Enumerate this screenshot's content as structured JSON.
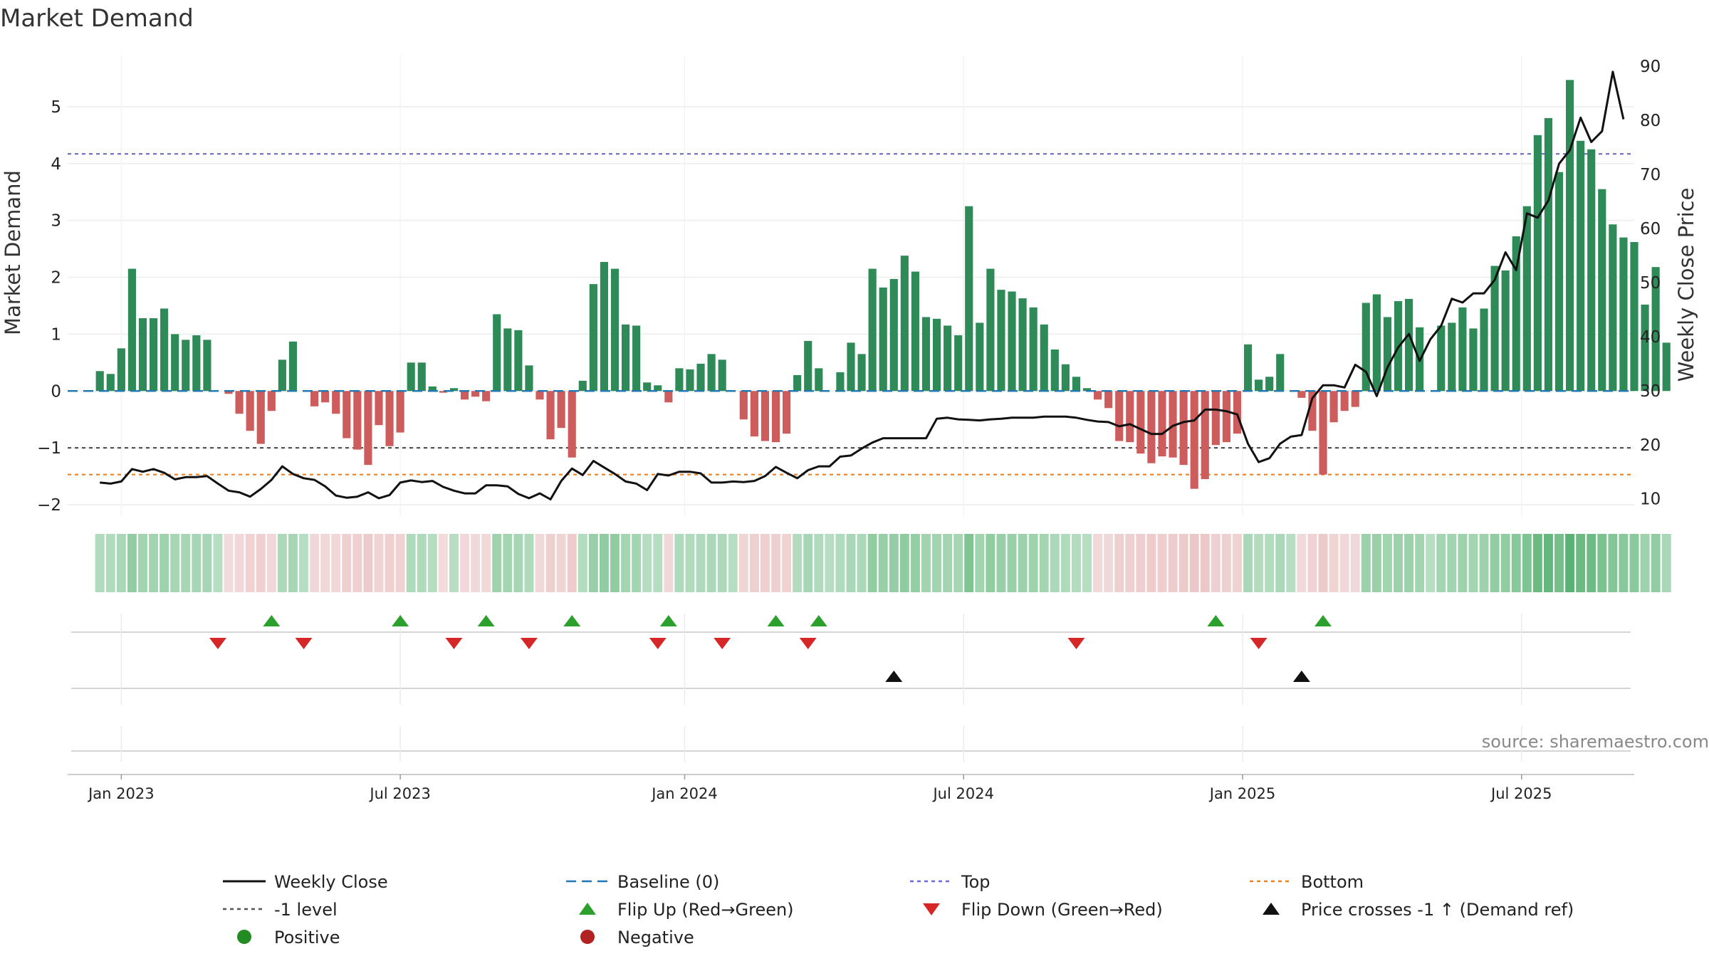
{
  "chart_data": {
    "type": "bar",
    "title": "Market Demand",
    "ylabel": "Market Demand",
    "y2label": "Weekly Close Price",
    "ylim": [
      -2.2,
      5.9
    ],
    "y2lim": [
      6.8,
      92
    ],
    "yticks": [
      -2,
      -1,
      0,
      1,
      2,
      3,
      4,
      5
    ],
    "y2ticks": [
      10,
      20,
      30,
      40,
      50,
      60,
      70,
      80,
      90
    ],
    "x_range": [
      -3,
      143
    ],
    "x_ticks": [
      {
        "label": "Jan 2023",
        "week": 2
      },
      {
        "label": "Jul 2023",
        "week": 28
      },
      {
        "label": "Jan 2024",
        "week": 54.5
      },
      {
        "label": "Jul 2024",
        "week": 80.5
      },
      {
        "label": "Jan 2025",
        "week": 106.5
      },
      {
        "label": "Jul 2025",
        "week": 132.5
      }
    ],
    "series": [
      {
        "name": "Market Demand",
        "values": [
          0.35,
          0.3,
          0.75,
          2.15,
          1.28,
          1.28,
          1.45,
          1.0,
          0.9,
          0.98,
          0.9,
          0,
          -0.05,
          -0.4,
          -0.7,
          -0.93,
          -0.35,
          0.55,
          0.87,
          0,
          -0.27,
          -0.2,
          -0.4,
          -0.83,
          -1.03,
          -1.3,
          -0.6,
          -0.97,
          -0.73,
          0.5,
          0.5,
          0.08,
          -0.03,
          0.05,
          -0.15,
          -0.1,
          -0.18,
          1.35,
          1.1,
          1.07,
          0.45,
          -0.15,
          -0.85,
          -0.65,
          -1.17,
          0.18,
          1.88,
          2.27,
          2.15,
          1.17,
          1.15,
          0.15,
          0.1,
          -0.2,
          0.4,
          0.38,
          0.48,
          0.65,
          0.55,
          0,
          -0.5,
          -0.8,
          -0.88,
          -0.9,
          -0.75,
          0.28,
          0.88,
          0.4,
          0,
          0.33,
          0.85,
          0.65,
          2.15,
          1.82,
          1.97,
          2.38,
          2.1,
          1.3,
          1.27,
          1.15,
          0.98,
          3.25,
          1.2,
          2.15,
          1.78,
          1.75,
          1.63,
          1.47,
          1.17,
          0.73,
          0.47,
          0.25,
          0.05,
          -0.15,
          -0.3,
          -0.88,
          -0.9,
          -1.1,
          -1.27,
          -1.15,
          -1.17,
          -1.3,
          -1.72,
          -1.55,
          -0.95,
          -0.9,
          -0.75,
          0.82,
          0.2,
          0.25,
          0.65,
          0,
          -0.12,
          -0.7,
          -1.47,
          -0.55,
          -0.35,
          -0.28,
          1.55,
          1.7,
          1.3,
          1.58,
          1.62,
          1.12,
          0,
          1.15,
          1.2,
          1.47,
          1.1,
          1.45,
          2.2,
          2.12,
          2.72,
          3.25,
          4.5,
          4.8,
          3.85,
          5.47,
          4.4,
          4.25,
          3.55,
          2.93,
          2.7,
          2.62,
          1.52,
          2.18,
          0.85
        ]
      },
      {
        "name": "Weekly Close",
        "values": [
          13,
          12.8,
          13.2,
          15.5,
          15,
          15.5,
          14.8,
          13.6,
          14,
          14,
          14.2,
          12.8,
          11.5,
          11.2,
          10.4,
          11.8,
          13.5,
          16,
          14.6,
          13.8,
          13.5,
          12.3,
          10.6,
          10.2,
          10.4,
          11.2,
          10.1,
          10.7,
          13,
          13.4,
          13.1,
          13.3,
          12.2,
          11.5,
          11,
          11,
          12.5,
          12.5,
          12.3,
          10.9,
          10.1,
          11,
          9.9,
          13.3,
          15.6,
          14.4,
          17,
          15.8,
          14.6,
          13.2,
          12.8,
          11.6,
          14.6,
          14.3,
          15,
          15,
          14.7,
          13,
          13,
          13.2,
          13.1,
          13.3,
          14.2,
          15.9,
          14.8,
          13.8,
          15.3,
          16,
          16,
          17.8,
          18,
          19.3,
          20.4,
          21.2,
          21.2,
          21.2,
          21.2,
          21.2,
          24.8,
          25,
          24.7,
          24.6,
          24.5,
          24.7,
          24.8,
          25,
          25,
          25,
          25.2,
          25.2,
          25.2,
          25,
          24.6,
          24.3,
          24.2,
          23.4,
          23.8,
          22.9,
          22,
          22,
          23.5,
          24.2,
          24.5,
          26.5,
          26.5,
          26.2,
          25.6,
          20.2,
          16.8,
          17.5,
          20.2,
          21.5,
          21.8,
          28.6,
          31,
          31,
          30.6,
          34.8,
          33.5,
          29,
          34.3,
          38,
          40.5,
          35.5,
          39.5,
          42,
          47,
          46.3,
          48,
          48,
          50.5,
          55.6,
          52.3,
          62.8,
          62,
          65.2,
          72,
          74.5,
          80.5,
          76,
          78,
          89,
          80.2
        ]
      }
    ],
    "reference_lines": [
      {
        "name": "Baseline (0)",
        "axis": "y",
        "value": 0,
        "color": "#1f77b4",
        "style": "dash"
      },
      {
        "name": "Top",
        "axis": "y",
        "value": 4.17,
        "color": "#6a6ad0",
        "style": "dot"
      },
      {
        "name": "Bottom",
        "axis": "y",
        "value": -1.47,
        "color": "#ff7f0e",
        "style": "dot"
      },
      {
        "name": "-1 level",
        "axis": "y",
        "value": -1,
        "color": "#555555",
        "style": "dot"
      }
    ],
    "flip_up_weeks": [
      16,
      28,
      36,
      44,
      53,
      63,
      67,
      104,
      114
    ],
    "flip_down_weeks": [
      11,
      19,
      33,
      40,
      52,
      58,
      66,
      91,
      108
    ],
    "price_cross_weeks": [
      74,
      112
    ],
    "colors": {
      "positive_bar": "#2e8b57",
      "negative_bar": "#cd5c5c",
      "price_line": "#111111",
      "flip_up": "#2ca02c",
      "flip_down": "#d62728",
      "price_cross": "#111111"
    },
    "legend": [
      {
        "label": "Weekly Close",
        "kind": "line",
        "color": "#111111"
      },
      {
        "label": "Baseline (0)",
        "kind": "dash",
        "color": "#1f77b4"
      },
      {
        "label": "Top",
        "kind": "dot",
        "color": "#6a6ad0"
      },
      {
        "label": "Bottom",
        "kind": "dot",
        "color": "#ff7f0e"
      },
      {
        "label": "-1 level",
        "kind": "dot",
        "color": "#555555"
      },
      {
        "label": "Flip Up (Red→Green)",
        "kind": "tri-up",
        "color": "#2ca02c"
      },
      {
        "label": "Flip Down (Green→Red)",
        "kind": "tri-down",
        "color": "#d62728"
      },
      {
        "label": "Price crosses -1 ↑ (Demand ref)",
        "kind": "tri-up",
        "color": "#111111"
      },
      {
        "label": "Positive",
        "kind": "circle",
        "color": "#228b22"
      },
      {
        "label": "Negative",
        "kind": "circle",
        "color": "#b22222"
      }
    ],
    "legend_position": "bottom",
    "source": "source: sharemaestro.com"
  }
}
